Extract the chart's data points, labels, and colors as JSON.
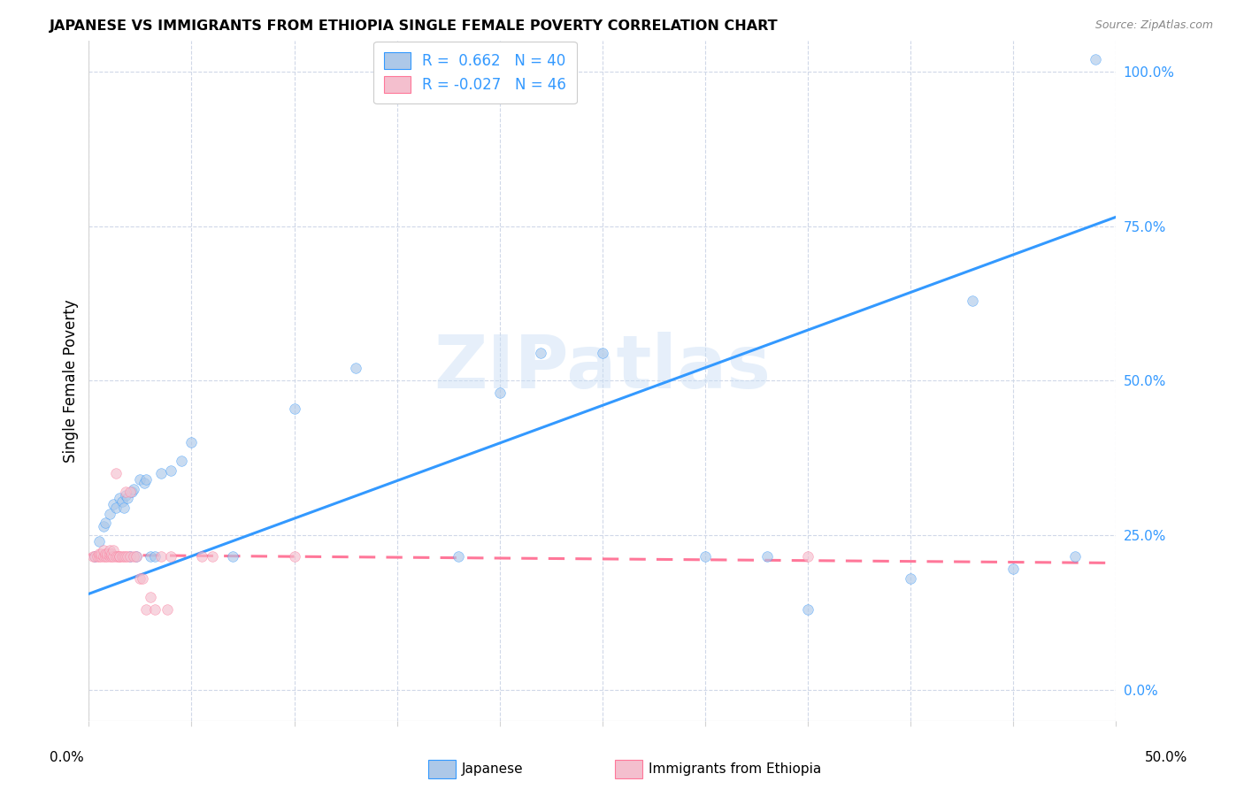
{
  "title": "JAPANESE VS IMMIGRANTS FROM ETHIOPIA SINGLE FEMALE POVERTY CORRELATION CHART",
  "source": "Source: ZipAtlas.com",
  "ylabel": "Single Female Poverty",
  "ytick_labels": [
    "0.0%",
    "25.0%",
    "50.0%",
    "75.0%",
    "100.0%"
  ],
  "ytick_values": [
    0.0,
    0.25,
    0.5,
    0.75,
    1.0
  ],
  "xlim": [
    0.0,
    0.5
  ],
  "ylim": [
    -0.05,
    1.05
  ],
  "watermark": "ZIPatlas",
  "legend_r1": "R =  0.662   N = 40",
  "legend_r2": "R = -0.027   N = 46",
  "japanese_color": "#adc8e8",
  "ethiopia_color": "#f4bfce",
  "line_japanese_color": "#3399ff",
  "line_ethiopia_color": "#ff7799",
  "japanese_scatter": [
    [
      0.003,
      0.215
    ],
    [
      0.005,
      0.24
    ],
    [
      0.007,
      0.265
    ],
    [
      0.008,
      0.27
    ],
    [
      0.01,
      0.285
    ],
    [
      0.012,
      0.3
    ],
    [
      0.013,
      0.295
    ],
    [
      0.015,
      0.31
    ],
    [
      0.016,
      0.305
    ],
    [
      0.017,
      0.295
    ],
    [
      0.018,
      0.315
    ],
    [
      0.019,
      0.31
    ],
    [
      0.02,
      0.215
    ],
    [
      0.021,
      0.32
    ],
    [
      0.022,
      0.325
    ],
    [
      0.023,
      0.215
    ],
    [
      0.025,
      0.34
    ],
    [
      0.027,
      0.335
    ],
    [
      0.028,
      0.34
    ],
    [
      0.03,
      0.215
    ],
    [
      0.032,
      0.215
    ],
    [
      0.035,
      0.35
    ],
    [
      0.04,
      0.355
    ],
    [
      0.045,
      0.37
    ],
    [
      0.05,
      0.4
    ],
    [
      0.07,
      0.215
    ],
    [
      0.1,
      0.455
    ],
    [
      0.13,
      0.52
    ],
    [
      0.18,
      0.215
    ],
    [
      0.2,
      0.48
    ],
    [
      0.22,
      0.545
    ],
    [
      0.25,
      0.545
    ],
    [
      0.3,
      0.215
    ],
    [
      0.33,
      0.215
    ],
    [
      0.35,
      0.13
    ],
    [
      0.4,
      0.18
    ],
    [
      0.43,
      0.63
    ],
    [
      0.45,
      0.195
    ],
    [
      0.48,
      0.215
    ],
    [
      0.49,
      1.02
    ]
  ],
  "ethiopia_scatter": [
    [
      0.002,
      0.215
    ],
    [
      0.003,
      0.215
    ],
    [
      0.004,
      0.215
    ],
    [
      0.005,
      0.215
    ],
    [
      0.005,
      0.22
    ],
    [
      0.006,
      0.215
    ],
    [
      0.006,
      0.22
    ],
    [
      0.007,
      0.215
    ],
    [
      0.007,
      0.225
    ],
    [
      0.008,
      0.215
    ],
    [
      0.008,
      0.22
    ],
    [
      0.009,
      0.215
    ],
    [
      0.009,
      0.22
    ],
    [
      0.01,
      0.215
    ],
    [
      0.01,
      0.22
    ],
    [
      0.01,
      0.225
    ],
    [
      0.011,
      0.215
    ],
    [
      0.011,
      0.22
    ],
    [
      0.012,
      0.215
    ],
    [
      0.012,
      0.225
    ],
    [
      0.013,
      0.215
    ],
    [
      0.013,
      0.35
    ],
    [
      0.014,
      0.215
    ],
    [
      0.015,
      0.215
    ],
    [
      0.015,
      0.215
    ],
    [
      0.016,
      0.215
    ],
    [
      0.017,
      0.215
    ],
    [
      0.018,
      0.215
    ],
    [
      0.018,
      0.32
    ],
    [
      0.019,
      0.215
    ],
    [
      0.02,
      0.215
    ],
    [
      0.02,
      0.32
    ],
    [
      0.022,
      0.215
    ],
    [
      0.023,
      0.215
    ],
    [
      0.025,
      0.18
    ],
    [
      0.026,
      0.18
    ],
    [
      0.028,
      0.13
    ],
    [
      0.03,
      0.15
    ],
    [
      0.032,
      0.13
    ],
    [
      0.035,
      0.215
    ],
    [
      0.038,
      0.13
    ],
    [
      0.04,
      0.215
    ],
    [
      0.055,
      0.215
    ],
    [
      0.06,
      0.215
    ],
    [
      0.1,
      0.215
    ],
    [
      0.35,
      0.215
    ]
  ],
  "japanese_line_x": [
    0.0,
    0.5
  ],
  "japanese_line_y": [
    0.155,
    0.765
  ],
  "ethiopia_line_x": [
    0.0,
    0.5
  ],
  "ethiopia_line_y": [
    0.218,
    0.205
  ],
  "dot_size": 70,
  "dot_alpha": 0.65,
  "line_width": 2.2,
  "grid_color": "#d0d8e8",
  "xtick_vals": [
    0.0,
    0.05,
    0.1,
    0.15,
    0.2,
    0.25,
    0.3,
    0.35,
    0.4,
    0.45,
    0.5
  ]
}
